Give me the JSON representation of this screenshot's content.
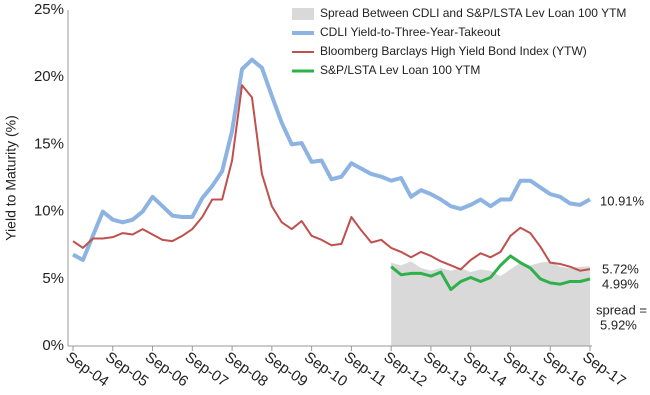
{
  "chart_data": {
    "type": "line",
    "ylabel": "Yield to Maturity  (%)",
    "categories": [
      "Sep-04",
      null,
      null,
      null,
      "Sep-05",
      null,
      null,
      null,
      "Sep-06",
      null,
      null,
      null,
      "Sep-07",
      null,
      null,
      null,
      "Sep-08",
      null,
      null,
      null,
      "Sep-09",
      null,
      null,
      null,
      "Sep-10",
      null,
      null,
      null,
      "Sep-11",
      null,
      null,
      null,
      "Sep-12",
      null,
      null,
      null,
      "Sep-13",
      null,
      null,
      null,
      "Sep-14",
      null,
      null,
      null,
      "Sep-15",
      null,
      null,
      null,
      "Sep-16",
      null,
      null,
      null,
      "Sep-17"
    ],
    "series": [
      {
        "name": "Spread Between CDLI and S&P/LSTA Lev Loan 100 YTM",
        "type": "area",
        "color": "#d9d9d9",
        "values": [
          null,
          null,
          null,
          null,
          null,
          null,
          null,
          null,
          null,
          null,
          null,
          null,
          null,
          null,
          null,
          null,
          null,
          null,
          null,
          null,
          null,
          null,
          null,
          null,
          null,
          null,
          null,
          null,
          null,
          null,
          null,
          null,
          6.2,
          6.0,
          6.3,
          5.8,
          5.6,
          5.8,
          5.6,
          5.8,
          5.5,
          5.7,
          5.6,
          5.2,
          5.7,
          6.2,
          6.0,
          6.2,
          6.3,
          5.9,
          5.8,
          5.9,
          5.92
        ]
      },
      {
        "name": "CDLI Yield-to-Three-Year-Takeout",
        "type": "line",
        "color": "#8db3e2",
        "values": [
          6.8,
          6.4,
          8.2,
          10.0,
          9.4,
          9.2,
          9.4,
          10.0,
          11.1,
          10.4,
          9.7,
          9.6,
          9.6,
          11.0,
          11.9,
          13.0,
          16.0,
          20.6,
          21.3,
          20.7,
          18.6,
          16.6,
          15.0,
          15.1,
          13.7,
          13.8,
          12.4,
          12.6,
          13.6,
          13.2,
          12.8,
          12.6,
          12.3,
          12.5,
          11.1,
          11.6,
          11.3,
          10.9,
          10.4,
          10.2,
          10.5,
          10.9,
          10.4,
          10.9,
          10.9,
          12.3,
          12.3,
          11.8,
          11.3,
          11.1,
          10.6,
          10.5,
          10.91
        ]
      },
      {
        "name": "Bloomberg Barclays High Yield Bond Index (YTW)",
        "type": "line",
        "color": "#c0504d",
        "values": [
          7.8,
          7.3,
          8.0,
          8.0,
          8.1,
          8.4,
          8.3,
          8.7,
          8.3,
          7.9,
          7.8,
          8.2,
          8.7,
          9.6,
          10.9,
          10.9,
          13.8,
          19.4,
          18.5,
          12.8,
          10.4,
          9.2,
          8.7,
          9.3,
          8.2,
          7.9,
          7.5,
          7.6,
          9.6,
          8.6,
          7.7,
          7.9,
          7.3,
          7.0,
          6.6,
          7.0,
          6.7,
          6.3,
          6.0,
          5.7,
          6.4,
          6.9,
          6.6,
          7.0,
          8.2,
          8.8,
          8.4,
          7.4,
          6.2,
          6.1,
          5.9,
          5.6,
          5.72
        ]
      },
      {
        "name": "S&P/LSTA Lev Loan 100 YTM",
        "type": "line",
        "color": "#2eb04b",
        "values": [
          null,
          null,
          null,
          null,
          null,
          null,
          null,
          null,
          null,
          null,
          null,
          null,
          null,
          null,
          null,
          null,
          null,
          null,
          null,
          null,
          null,
          null,
          null,
          null,
          null,
          null,
          null,
          null,
          null,
          null,
          null,
          null,
          5.9,
          5.3,
          5.4,
          5.4,
          5.2,
          5.5,
          4.2,
          4.8,
          5.1,
          4.8,
          5.1,
          6.0,
          6.7,
          6.2,
          5.8,
          5.0,
          4.7,
          4.6,
          4.8,
          4.8,
          4.99
        ]
      }
    ],
    "ylim": [
      0,
      25
    ],
    "yticks": [
      {
        "value": 0,
        "label": "0%"
      },
      {
        "value": 5,
        "label": "5%"
      },
      {
        "value": 10,
        "label": "10%"
      },
      {
        "value": 15,
        "label": "15%"
      },
      {
        "value": 20,
        "label": "20%"
      },
      {
        "value": 25,
        "label": "25%"
      }
    ],
    "annotations": [
      "10.91%",
      "5.72%",
      "4.99%",
      "spread =",
      "5.92%"
    ],
    "legend": "upper right",
    "grid": false
  }
}
